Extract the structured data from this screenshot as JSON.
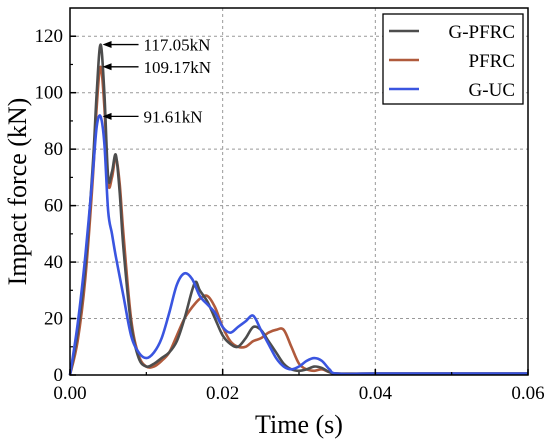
{
  "chart_data": {
    "type": "line",
    "xlabel": "Time (s)",
    "ylabel": "Impact force (kN)",
    "xlim": [
      0,
      0.06
    ],
    "ylim": [
      0,
      130
    ],
    "xticks": [
      0.0,
      0.02,
      0.04,
      0.06
    ],
    "xtick_labels": [
      "0.00",
      "0.02",
      "0.04",
      "0.06"
    ],
    "yticks": [
      0,
      20,
      40,
      60,
      80,
      100,
      120
    ],
    "ytick_labels": [
      "0",
      "20",
      "40",
      "60",
      "80",
      "100",
      "120"
    ],
    "grid": true,
    "legend_position": "top-right",
    "series": [
      {
        "name": "G-PFRC",
        "color": "#4d4d4d",
        "points": [
          [
            0,
            0
          ],
          [
            0.001,
            15
          ],
          [
            0.002,
            38
          ],
          [
            0.003,
            75
          ],
          [
            0.0035,
            100
          ],
          [
            0.004,
            117.05
          ],
          [
            0.0045,
            100
          ],
          [
            0.005,
            70
          ],
          [
            0.0055,
            72
          ],
          [
            0.006,
            78
          ],
          [
            0.0065,
            65
          ],
          [
            0.007,
            45
          ],
          [
            0.008,
            18
          ],
          [
            0.009,
            6
          ],
          [
            0.01,
            3
          ],
          [
            0.011,
            4
          ],
          [
            0.012,
            6
          ],
          [
            0.013,
            8
          ],
          [
            0.014,
            12
          ],
          [
            0.015,
            20
          ],
          [
            0.016,
            30
          ],
          [
            0.0165,
            33
          ],
          [
            0.017,
            30
          ],
          [
            0.018,
            26
          ],
          [
            0.019,
            20
          ],
          [
            0.02,
            14
          ],
          [
            0.021,
            11
          ],
          [
            0.022,
            10
          ],
          [
            0.023,
            13
          ],
          [
            0.024,
            17
          ],
          [
            0.025,
            16
          ],
          [
            0.026,
            12
          ],
          [
            0.027,
            8
          ],
          [
            0.028,
            4
          ],
          [
            0.029,
            2
          ],
          [
            0.03,
            1.5
          ],
          [
            0.031,
            2
          ],
          [
            0.032,
            3
          ],
          [
            0.033,
            2.5
          ],
          [
            0.034,
            1
          ],
          [
            0.035,
            0.5
          ],
          [
            0.04,
            0.5
          ],
          [
            0.05,
            0.5
          ],
          [
            0.06,
            0.5
          ]
        ]
      },
      {
        "name": "PFRC",
        "color": "#b05a3c",
        "points": [
          [
            0,
            0
          ],
          [
            0.001,
            12
          ],
          [
            0.002,
            34
          ],
          [
            0.003,
            70
          ],
          [
            0.0035,
            95
          ],
          [
            0.004,
            109.17
          ],
          [
            0.0045,
            95
          ],
          [
            0.005,
            68
          ],
          [
            0.0055,
            70
          ],
          [
            0.006,
            77
          ],
          [
            0.0065,
            68
          ],
          [
            0.007,
            50
          ],
          [
            0.008,
            20
          ],
          [
            0.009,
            7
          ],
          [
            0.01,
            3
          ],
          [
            0.011,
            3
          ],
          [
            0.012,
            5
          ],
          [
            0.013,
            8
          ],
          [
            0.014,
            14
          ],
          [
            0.015,
            20
          ],
          [
            0.016,
            24
          ],
          [
            0.017,
            27
          ],
          [
            0.018,
            28
          ],
          [
            0.019,
            24
          ],
          [
            0.02,
            17
          ],
          [
            0.021,
            12
          ],
          [
            0.022,
            10
          ],
          [
            0.023,
            10
          ],
          [
            0.024,
            12
          ],
          [
            0.025,
            13
          ],
          [
            0.026,
            15
          ],
          [
            0.027,
            16
          ],
          [
            0.028,
            16
          ],
          [
            0.029,
            10
          ],
          [
            0.03,
            4
          ],
          [
            0.031,
            2
          ],
          [
            0.032,
            1.5
          ],
          [
            0.033,
            2
          ],
          [
            0.034,
            1
          ],
          [
            0.035,
            0.5
          ],
          [
            0.04,
            0.5
          ],
          [
            0.05,
            0.5
          ],
          [
            0.06,
            0.5
          ]
        ]
      },
      {
        "name": "G-UC",
        "color": "#3a55e0",
        "points": [
          [
            0,
            0
          ],
          [
            0.001,
            18
          ],
          [
            0.002,
            42
          ],
          [
            0.003,
            72
          ],
          [
            0.0035,
            88
          ],
          [
            0.004,
            91.61
          ],
          [
            0.0045,
            82
          ],
          [
            0.005,
            58
          ],
          [
            0.0055,
            50
          ],
          [
            0.006,
            42
          ],
          [
            0.007,
            28
          ],
          [
            0.008,
            14
          ],
          [
            0.009,
            8
          ],
          [
            0.01,
            6
          ],
          [
            0.011,
            8
          ],
          [
            0.012,
            13
          ],
          [
            0.013,
            22
          ],
          [
            0.014,
            32
          ],
          [
            0.015,
            36
          ],
          [
            0.016,
            34
          ],
          [
            0.017,
            28
          ],
          [
            0.018,
            25
          ],
          [
            0.019,
            22
          ],
          [
            0.02,
            17
          ],
          [
            0.021,
            15
          ],
          [
            0.022,
            17
          ],
          [
            0.023,
            19
          ],
          [
            0.024,
            21
          ],
          [
            0.025,
            16
          ],
          [
            0.026,
            11
          ],
          [
            0.027,
            6
          ],
          [
            0.028,
            3
          ],
          [
            0.029,
            2
          ],
          [
            0.03,
            3
          ],
          [
            0.031,
            5
          ],
          [
            0.032,
            6
          ],
          [
            0.033,
            5
          ],
          [
            0.034,
            2
          ],
          [
            0.035,
            0.5
          ],
          [
            0.04,
            0.5
          ],
          [
            0.05,
            0.5
          ],
          [
            0.06,
            0.5
          ]
        ]
      }
    ],
    "annotations": [
      {
        "text": "117.05kN",
        "x": 0.004,
        "y": 117.05
      },
      {
        "text": "109.17kN",
        "x": 0.004,
        "y": 109.17
      },
      {
        "text": "91.61kN",
        "x": 0.004,
        "y": 91.61
      }
    ]
  }
}
